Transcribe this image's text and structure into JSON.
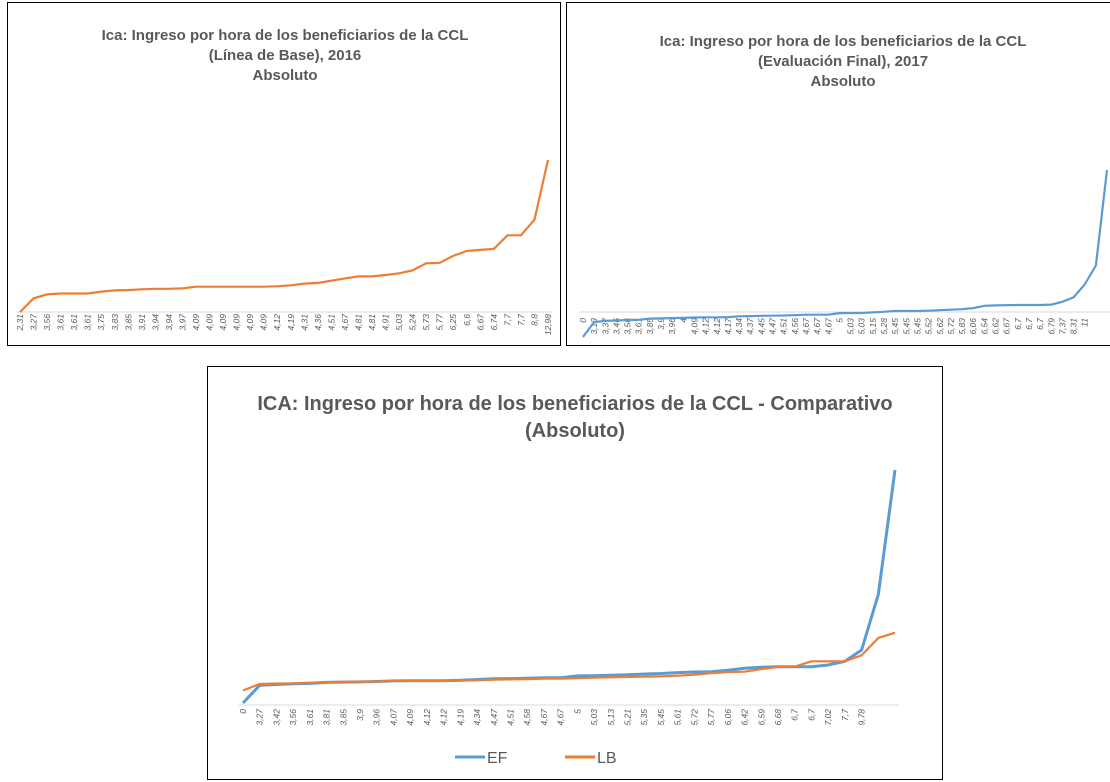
{
  "chart_data": [
    {
      "type": "line",
      "title": [
        "Ica: Ingreso por hora de los beneficiarios de la CCL",
        "(Línea de Base), 2016",
        "Absoluto"
      ],
      "categories": [
        "2,31",
        "3,27",
        "3,56",
        "3,61",
        "3,61",
        "3,61",
        "3,75",
        "3,83",
        "3,85",
        "3,91",
        "3,94",
        "3,94",
        "3,97",
        "4,09",
        "4,09",
        "4,09",
        "4,09",
        "4,09",
        "4,09",
        "4,12",
        "4,19",
        "4,31",
        "4,36",
        "4,51",
        "4,67",
        "4,81",
        "4,81",
        "4,91",
        "5,03",
        "5,24",
        "5,73",
        "5,77",
        "6,25",
        "6,6",
        "6,67",
        "6,74",
        "7,7",
        "7,7",
        "8,8",
        "12,98"
      ],
      "series": [
        {
          "color": "#ed7d31",
          "values": [
            2.31,
            3.27,
            3.56,
            3.61,
            3.61,
            3.61,
            3.75,
            3.83,
            3.85,
            3.91,
            3.94,
            3.94,
            3.97,
            4.09,
            4.09,
            4.09,
            4.09,
            4.09,
            4.09,
            4.12,
            4.19,
            4.31,
            4.36,
            4.51,
            4.67,
            4.81,
            4.81,
            4.91,
            5.03,
            5.24,
            5.73,
            5.77,
            6.25,
            6.6,
            6.67,
            6.74,
            7.7,
            7.7,
            8.8,
            12.98
          ]
        }
      ]
    },
    {
      "type": "line",
      "title": [
        "Ica: Ingreso por hora de los beneficiarios de la CCL",
        "(Evaluación Final), 2017",
        "Absoluto"
      ],
      "categories": [
        "0",
        "3,13",
        "3,37",
        "3,46",
        "3,56",
        "3,61",
        "3,85",
        "3,9",
        "3,96",
        "4",
        "4,09",
        "4,12",
        "4,12",
        "4,17",
        "4,34",
        "4,37",
        "4,45",
        "4,47",
        "4,51",
        "4,56",
        "4,67",
        "4,67",
        "4,67",
        "5",
        "5,03",
        "5,03",
        "5,15",
        "5,28",
        "5,45",
        "5,45",
        "5,45",
        "5,52",
        "5,62",
        "5,72",
        "5,83",
        "6,06",
        "6,54",
        "6,62",
        "6,67",
        "6,7",
        "6,7",
        "6,7",
        "6,79",
        "7,37",
        "8,31",
        "11",
        null,
        null
      ],
      "series": [
        {
          "color": "#5b9bd5",
          "values": [
            0,
            3.13,
            3.37,
            3.46,
            3.56,
            3.61,
            3.85,
            3.9,
            3.96,
            4,
            4.09,
            4.12,
            4.12,
            4.17,
            4.34,
            4.37,
            4.45,
            4.47,
            4.51,
            4.56,
            4.67,
            4.67,
            4.67,
            5,
            5.03,
            5.03,
            5.15,
            5.28,
            5.45,
            5.45,
            5.45,
            5.52,
            5.62,
            5.72,
            5.83,
            6.06,
            6.54,
            6.62,
            6.67,
            6.7,
            6.7,
            6.7,
            6.79,
            7.37,
            8.31,
            11,
            15,
            35
          ]
        }
      ]
    },
    {
      "type": "line",
      "title": [
        "ICA: Ingreso por hora de los beneficiarios de la CCL - Comparativo",
        "(Absoluto)"
      ],
      "categories": [
        "0",
        "3,27",
        "3,42",
        "3,56",
        "3,61",
        "3,81",
        "3,85",
        "3,9",
        "3,96",
        "4,07",
        "4,09",
        "4,12",
        "4,12",
        "4,19",
        "4,34",
        "4,47",
        "4,51",
        "4,58",
        "4,67",
        "4,67",
        "5",
        "5,03",
        "5,13",
        "5,21",
        "5,35",
        "5,45",
        "5,61",
        "5,72",
        "5,77",
        "6,06",
        "6,42",
        "6,59",
        "6,68",
        "6,7",
        "6,7",
        "7,02",
        "7,7",
        "9,78",
        null,
        null
      ],
      "series": [
        {
          "name": "EF",
          "color": "#5b9bd5",
          "values": [
            0,
            3.27,
            3.42,
            3.56,
            3.61,
            3.81,
            3.85,
            3.9,
            3.96,
            4.07,
            4.09,
            4.12,
            4.12,
            4.19,
            4.34,
            4.47,
            4.51,
            4.58,
            4.67,
            4.67,
            5,
            5.03,
            5.13,
            5.21,
            5.35,
            5.45,
            5.61,
            5.72,
            5.77,
            6.06,
            6.42,
            6.59,
            6.68,
            6.7,
            6.7,
            7.02,
            7.7,
            9.78,
            20,
            43
          ]
        },
        {
          "name": "LB",
          "color": "#ed7d31",
          "values": [
            2.31,
            3.5,
            3.6,
            3.61,
            3.75,
            3.85,
            3.91,
            3.94,
            3.97,
            4.09,
            4.09,
            4.09,
            4.09,
            4.12,
            4.19,
            4.31,
            4.36,
            4.4,
            4.51,
            4.51,
            4.6,
            4.67,
            4.75,
            4.81,
            4.85,
            4.91,
            5.03,
            5.24,
            5.5,
            5.73,
            5.77,
            6.25,
            6.67,
            6.7,
            7.7,
            7.7,
            7.7,
            8.8,
            12,
            12.98
          ]
        }
      ]
    }
  ]
}
